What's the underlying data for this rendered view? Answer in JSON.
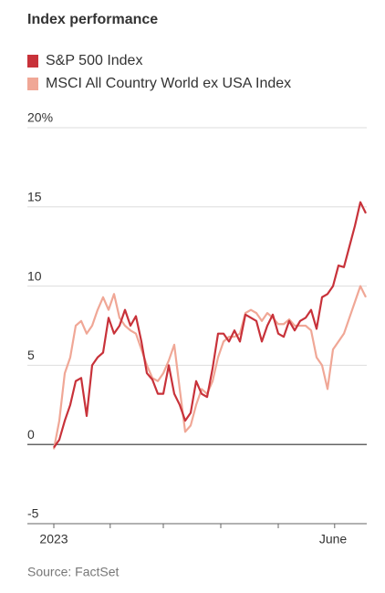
{
  "chart_data": {
    "type": "line",
    "title": "Index performance",
    "categories": [
      "2023",
      null,
      null,
      null,
      null,
      null,
      null,
      null,
      null,
      null,
      null,
      null,
      null,
      null,
      null,
      null,
      null,
      null,
      null,
      null,
      null,
      null,
      null,
      null,
      null,
      null,
      null,
      null,
      null,
      null,
      null,
      null,
      null,
      null,
      null,
      null,
      null,
      null,
      null,
      null,
      null,
      null,
      null,
      null,
      null,
      null,
      null,
      null,
      null,
      null,
      null,
      "June",
      null,
      null,
      null,
      null,
      null,
      null
    ],
    "series": [
      {
        "name": "S&P 500 Index",
        "color": "#c8323a",
        "values": [
          -0.2,
          0.3,
          1.5,
          2.5,
          4,
          4.2,
          1.8,
          5,
          5.5,
          5.8,
          8,
          7,
          7.5,
          8.5,
          7.5,
          8.1,
          6.5,
          4.5,
          4.1,
          3.2,
          3.2,
          5,
          3.2,
          2.5,
          1.5,
          2,
          4,
          3.2,
          3,
          4.8,
          7,
          7,
          6.5,
          7.2,
          6.5,
          8.2,
          8,
          7.8,
          6.5,
          7.5,
          8.2,
          7,
          6.8,
          7.8,
          7.2,
          7.8,
          8,
          8.5,
          7.3,
          9.3,
          9.5,
          10,
          11.3,
          11.2,
          12.5,
          13.8,
          15.3,
          14.6
        ]
      },
      {
        "name": "MSCI All Country World ex USA Index",
        "color": "#f0a796",
        "values": [
          -0.3,
          1.5,
          4.5,
          5.5,
          7.5,
          7.8,
          7,
          7.5,
          8.5,
          9.3,
          8.5,
          9.5,
          8,
          7.5,
          7.2,
          7,
          6,
          5,
          4.2,
          4,
          4.5,
          5.3,
          6.3,
          3.5,
          0.8,
          1.2,
          2.5,
          3.5,
          3.2,
          4,
          5.5,
          6.5,
          6.8,
          6.8,
          7,
          8.3,
          8.5,
          8.3,
          7.8,
          8.3,
          8,
          7.6,
          7.6,
          7.9,
          7.5,
          7.5,
          7.5,
          7.2,
          5.5,
          5,
          3.5,
          6,
          6.5,
          7,
          8,
          9,
          10,
          9.3
        ]
      }
    ],
    "ylim": [
      -5,
      20
    ],
    "yticks": [
      {
        "value": 20,
        "label": "20%"
      },
      15,
      10,
      5,
      0,
      -5
    ],
    "xticks": [
      0,
      10.3,
      20,
      30.5,
      41,
      51.3
    ],
    "grid": true,
    "source": "Source: FactSet"
  }
}
